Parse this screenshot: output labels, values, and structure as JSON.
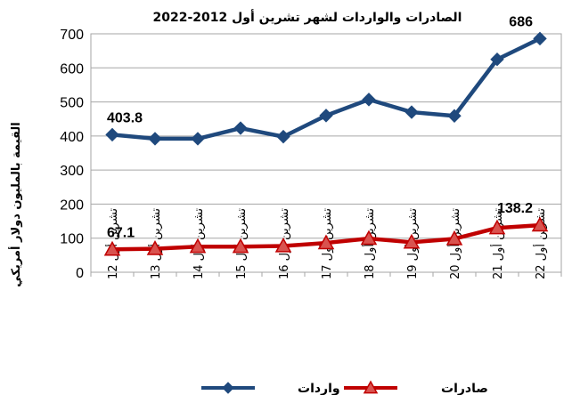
{
  "chart_data": {
    "type": "line",
    "title": "الصادرات والواردات لشهر تشرين أول 2012-2022",
    "ylabel": "القيمة بالمليون دولار أمريكي",
    "xlabel": "",
    "ylim": [
      0,
      700
    ],
    "yticks": [
      0,
      100,
      200,
      300,
      400,
      500,
      600,
      700
    ],
    "grid": true,
    "legend_position": "bottom",
    "categories": [
      "تشرين أول 12",
      "تشرين أول 13",
      "تشرين أول 14",
      "تشرين أول 15",
      "تشرين أول 16",
      "تشرين أول 17",
      "تشرين أول 18",
      "تشرين أول 19",
      "تشرين أول 20",
      "تشرين أول 21",
      "تشرين أول 22"
    ],
    "series": [
      {
        "name": "واردات",
        "color": "#1F497D",
        "marker": "diamond",
        "values": [
          403.8,
          392,
          392,
          423,
          398,
          460,
          507,
          470,
          459,
          625,
          686
        ],
        "data_labels": [
          {
            "index": 0,
            "text": "403.8"
          },
          {
            "index": 10,
            "text": "686"
          }
        ]
      },
      {
        "name": "صادرات",
        "color": "#C00000",
        "marker": "triangle",
        "values": [
          67.1,
          69,
          75,
          75,
          77,
          86,
          99,
          88,
          98,
          130,
          138.2
        ],
        "data_labels": [
          {
            "index": 0,
            "text": "67.1"
          },
          {
            "index": 10,
            "text": "138.2"
          }
        ]
      }
    ]
  }
}
